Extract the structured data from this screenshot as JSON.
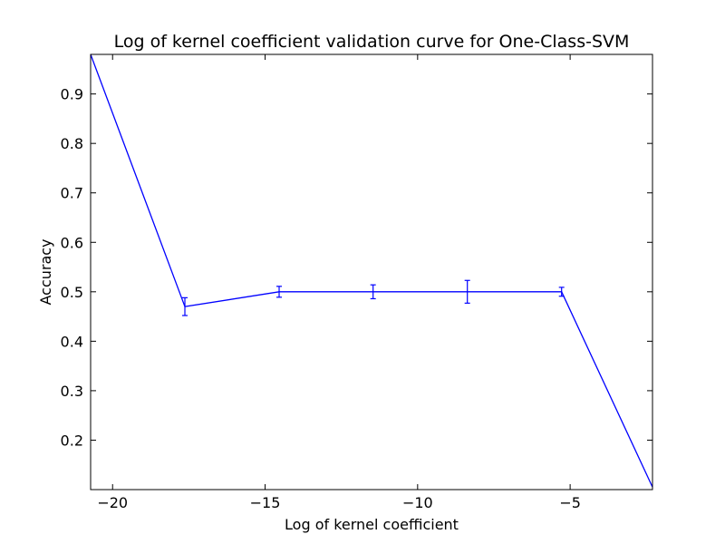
{
  "chart_data": {
    "type": "line",
    "title": "Log of kernel coefficient validation curve for One-Class-SVM",
    "xlabel": "Log of kernel coefficient",
    "ylabel": "Accuracy",
    "xlim": [
      -20.72,
      -2.3
    ],
    "ylim": [
      0.1,
      0.98
    ],
    "xticks": [
      -20,
      -15,
      -10,
      -5
    ],
    "xtick_labels": [
      "−20",
      "−15",
      "−10",
      "−5"
    ],
    "yticks": [
      0.2,
      0.3,
      0.4,
      0.5,
      0.6,
      0.7,
      0.8,
      0.9
    ],
    "ytick_labels": [
      "0.2",
      "0.3",
      "0.4",
      "0.5",
      "0.6",
      "0.7",
      "0.8",
      "0.9"
    ],
    "grid": false,
    "legend": "none",
    "series": [
      {
        "color": "#0000ff",
        "x": [
          -20.72,
          -17.63,
          -14.54,
          -11.46,
          -8.37,
          -5.28,
          -2.3
        ],
        "y": [
          0.98,
          0.47,
          0.5,
          0.5,
          0.5,
          0.5,
          0.105
        ],
        "yerr": [
          0,
          0.018,
          0.011,
          0.014,
          0.023,
          0.009,
          0
        ]
      }
    ]
  }
}
